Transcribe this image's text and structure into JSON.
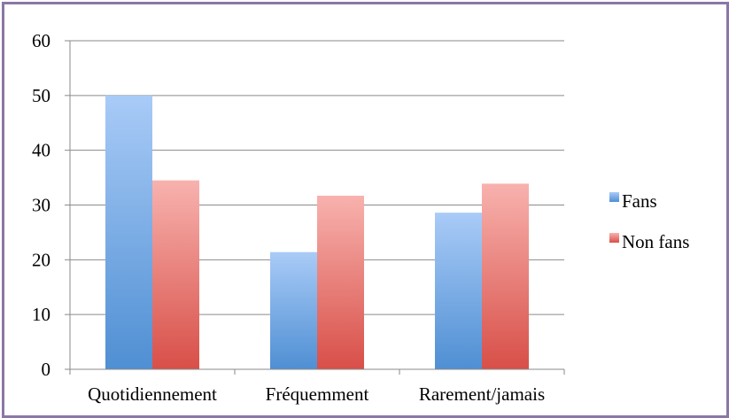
{
  "chart_data": {
    "type": "bar",
    "title": "",
    "xlabel": "",
    "ylabel": "",
    "categories": [
      "Quotidiennement",
      "Fréquemment",
      "Rarement/jamais"
    ],
    "series": [
      {
        "name": "Fans",
        "values": [
          50,
          21.4,
          28.6
        ],
        "color": "#5b9bd5",
        "color_light": "#a9cbf7",
        "color_dark": "#4f8fd3"
      },
      {
        "name": "Non fans",
        "values": [
          34.5,
          31.7,
          33.9
        ],
        "color": "#e0605a",
        "color_light": "#f8b2ae",
        "color_dark": "#d84f48"
      }
    ],
    "ylim": [
      0,
      60
    ],
    "yticks": [
      0,
      10,
      20,
      30,
      40,
      50,
      60
    ],
    "grid": true,
    "legend_position": "right",
    "frame_color": "#8c76a6"
  }
}
